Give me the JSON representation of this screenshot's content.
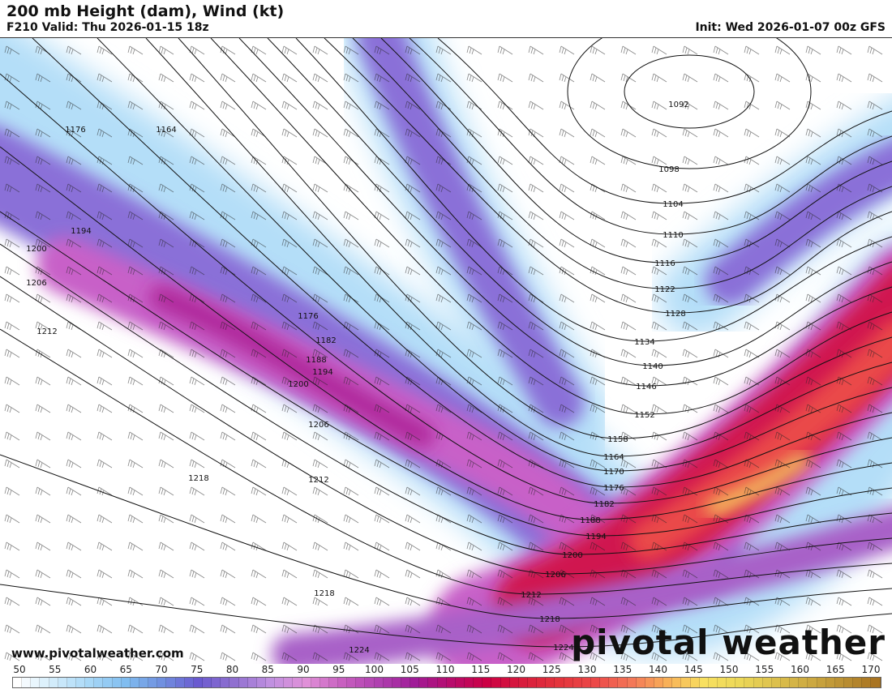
{
  "header": {
    "title": "200 mb Height (dam), Wind (kt)",
    "valid": "F210 Valid: Thu 2026-01-15 18z",
    "init": "Init: Wed 2026-01-07 00z GFS"
  },
  "footer": {
    "website": "www.pivotalweather.com",
    "brand": "pivotal weather"
  },
  "map": {
    "contour_levels": [
      1104,
      1110,
      1116,
      1122,
      1128,
      1134,
      1140,
      1146,
      1152,
      1158,
      1164,
      1170,
      1176,
      1182,
      1188,
      1194,
      1200,
      1206,
      1212,
      1218,
      1224
    ],
    "extra_labels": [
      1176,
      1164,
      1194,
      1200,
      1206,
      1212,
      1176,
      1182,
      1188,
      1194,
      1200,
      1206,
      1212,
      1218,
      1218,
      1224,
      1092,
      1098
    ],
    "low_center_levels": [
      1092,
      1098
    ],
    "contour_color": "#111111",
    "barb_color": "#222222"
  },
  "colorbar": {
    "labels": [
      "50",
      "55",
      "60",
      "65",
      "70",
      "75",
      "80",
      "85",
      "90",
      "95",
      "100",
      "105",
      "110",
      "115",
      "120",
      "125",
      "130",
      "135",
      "140",
      "145",
      "150",
      "155",
      "160",
      "165",
      "170"
    ],
    "colors": [
      "#ffffff",
      "#d2ecfb",
      "#a8d8f7",
      "#80bdf0",
      "#7090e0",
      "#6a5ad0",
      "#9070d0",
      "#c090e0",
      "#e090d8",
      "#c860c0",
      "#b040b0",
      "#a01c98",
      "#b80c6c",
      "#cc0044",
      "#d81c3c",
      "#e4343c",
      "#ec4848",
      "#f47858",
      "#f8b058",
      "#f8e060",
      "#ecd858",
      "#dcc04c",
      "#cca840",
      "#b88c30",
      "#a46c1c"
    ]
  }
}
